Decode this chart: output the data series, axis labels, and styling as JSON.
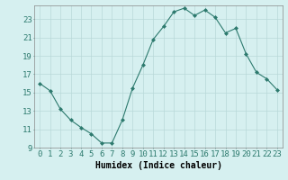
{
  "x": [
    0,
    1,
    2,
    3,
    4,
    5,
    6,
    7,
    8,
    9,
    10,
    11,
    12,
    13,
    14,
    15,
    16,
    17,
    18,
    19,
    20,
    21,
    22,
    23
  ],
  "y": [
    16.0,
    15.2,
    13.2,
    12.0,
    11.2,
    10.5,
    9.5,
    9.5,
    12.0,
    15.5,
    18.0,
    20.8,
    22.2,
    23.8,
    24.2,
    23.4,
    24.0,
    23.2,
    21.5,
    22.0,
    19.2,
    17.2,
    16.5,
    15.3
  ],
  "title": "",
  "xlabel": "Humidex (Indice chaleur)",
  "ylabel": "",
  "line_color": "#2d7a6e",
  "marker": "D",
  "marker_size": 2,
  "bg_color": "#d6f0f0",
  "grid_color": "#b8d8d8",
  "xlim": [
    -0.5,
    23.5
  ],
  "ylim": [
    9,
    24.5
  ],
  "yticks": [
    9,
    11,
    13,
    15,
    17,
    19,
    21,
    23
  ],
  "xtick_labels": [
    "0",
    "1",
    "2",
    "3",
    "4",
    "5",
    "6",
    "7",
    "8",
    "9",
    "10",
    "11",
    "12",
    "13",
    "14",
    "15",
    "16",
    "17",
    "18",
    "19",
    "20",
    "21",
    "22",
    "23"
  ],
  "xlabel_fontsize": 7,
  "tick_fontsize": 6.5
}
